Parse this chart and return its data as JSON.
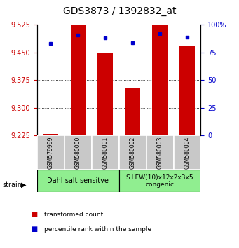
{
  "title": "GDS3873 / 1392832_at",
  "samples": [
    "GSM579999",
    "GSM580000",
    "GSM580001",
    "GSM580002",
    "GSM580003",
    "GSM580004"
  ],
  "red_values": [
    9.228,
    9.525,
    9.449,
    9.355,
    9.525,
    9.468
  ],
  "blue_values": [
    83,
    91,
    88,
    84,
    92,
    89
  ],
  "ylim_left": [
    9.225,
    9.525
  ],
  "ylim_right": [
    0,
    100
  ],
  "yticks_left": [
    9.225,
    9.3,
    9.375,
    9.45,
    9.525
  ],
  "yticks_right": [
    0,
    25,
    50,
    75,
    100
  ],
  "bar_bottom": 9.225,
  "group1_label": "Dahl salt-sensitve",
  "group2_label": "S.LEW(10)x12x2x3x5\ncongenic",
  "group1_indices": [
    0,
    1,
    2
  ],
  "group2_indices": [
    3,
    4,
    5
  ],
  "group_color": "#90EE90",
  "bar_color": "#CC0000",
  "dot_color": "#0000CC",
  "legend_red": "transformed count",
  "legend_blue": "percentile rank within the sample",
  "strain_label": "strain",
  "tick_color_left": "#CC0000",
  "tick_color_right": "#0000CC",
  "title_fontsize": 10,
  "axis_fontsize": 7,
  "sample_fontsize": 5.5,
  "group_fontsize": 7,
  "legend_fontsize": 6.5
}
